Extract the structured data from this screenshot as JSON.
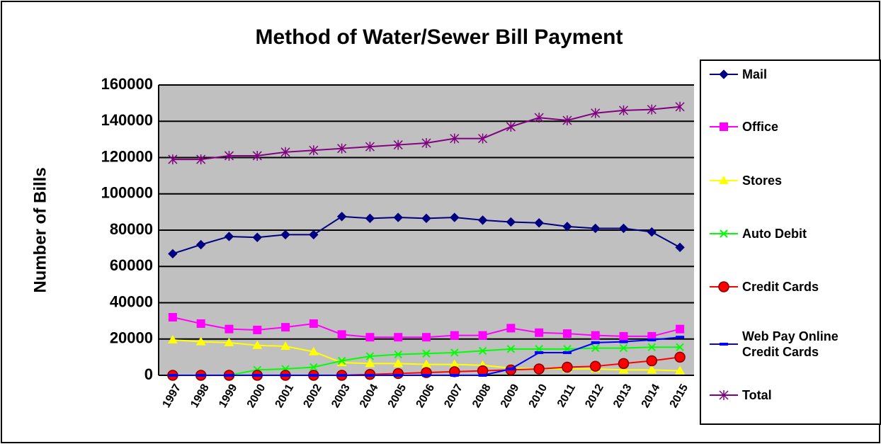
{
  "chart_data": {
    "type": "line",
    "title": "Method of Water/Sewer Bill Payment",
    "y_label": "Number of Bills",
    "categories": [
      "1997",
      "1998",
      "1999",
      "2000",
      "2001",
      "2002",
      "2003",
      "2004",
      "2005",
      "2006",
      "2007",
      "2008",
      "2009",
      "2010",
      "2011",
      "2012",
      "2013",
      "2014",
      "2015"
    ],
    "ylim": [
      0,
      160000
    ],
    "yticks": [
      0,
      20000,
      40000,
      60000,
      80000,
      100000,
      120000,
      140000,
      160000
    ],
    "grid": true,
    "legend": "right",
    "series": [
      {
        "name": "Mail",
        "color": "#000080",
        "marker": "diamond",
        "values": [
          67000,
          72000,
          76500,
          76000,
          77500,
          77500,
          87500,
          86500,
          87000,
          86500,
          87000,
          85500,
          84500,
          84000,
          82000,
          81000,
          81000,
          79000,
          70500
        ]
      },
      {
        "name": "Office",
        "color": "#FF00FF",
        "marker": "square",
        "values": [
          32000,
          28500,
          25500,
          25000,
          26500,
          28500,
          22500,
          21000,
          21000,
          21000,
          22000,
          22000,
          26000,
          23500,
          23000,
          22000,
          21500,
          21500,
          25500
        ]
      },
      {
        "name": "Stores",
        "color": "#FFFF00",
        "marker": "triangle",
        "values": [
          19500,
          18500,
          18000,
          16500,
          16000,
          13000,
          7000,
          6500,
          6500,
          6000,
          6000,
          5500,
          4000,
          3500,
          3500,
          3500,
          3000,
          3000,
          2500
        ]
      },
      {
        "name": "Auto Debit",
        "color": "#00FF00",
        "marker": "x",
        "values": [
          0,
          0,
          0,
          3000,
          3500,
          4500,
          8000,
          10500,
          11500,
          12000,
          12500,
          13500,
          14500,
          14500,
          14500,
          15000,
          15000,
          15500,
          15500
        ]
      },
      {
        "name": "Credit Cards",
        "color": "#FF0000",
        "marker": "circle",
        "values": [
          0,
          0,
          0,
          0,
          0,
          0,
          0,
          500,
          1000,
          1500,
          2000,
          2500,
          3000,
          3500,
          4500,
          5000,
          6500,
          8000,
          10000
        ]
      },
      {
        "name": "Web Pay Online Credit Cards",
        "color": "#0000FF",
        "marker": "dash",
        "values": [
          0,
          0,
          0,
          0,
          0,
          0,
          0,
          0,
          0,
          0,
          0,
          0,
          3500,
          12500,
          12500,
          18000,
          18500,
          19500,
          21000
        ]
      },
      {
        "name": "Total",
        "color": "#800080",
        "marker": "star",
        "values": [
          119000,
          119000,
          121000,
          121000,
          123000,
          124000,
          125000,
          126000,
          127000,
          128000,
          130500,
          130500,
          137000,
          142000,
          140500,
          144500,
          146000,
          146500,
          148000
        ]
      }
    ]
  }
}
